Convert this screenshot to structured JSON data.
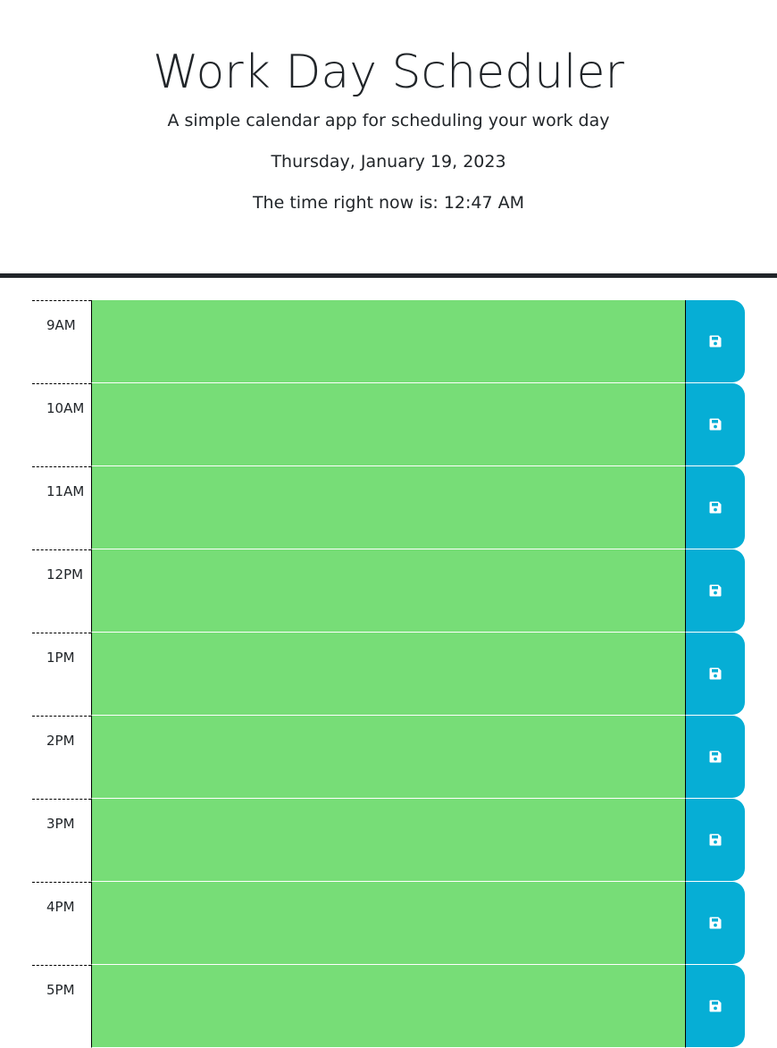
{
  "header": {
    "title": "Work Day Scheduler",
    "subtitle": "A simple calendar app for scheduling your work day",
    "date": "Thursday, January 19, 2023",
    "time_text": "The time right now is: 12:47 AM"
  },
  "colors": {
    "present": "#77dd77",
    "save_button": "#06aed5",
    "rule": "#212529"
  },
  "schedule": {
    "save_icon": "save-icon",
    "blocks": [
      {
        "hour": "9AM",
        "text": "",
        "state": "present"
      },
      {
        "hour": "10AM",
        "text": "",
        "state": "present"
      },
      {
        "hour": "11AM",
        "text": "",
        "state": "present"
      },
      {
        "hour": "12PM",
        "text": "",
        "state": "present"
      },
      {
        "hour": "1PM",
        "text": "",
        "state": "present"
      },
      {
        "hour": "2PM",
        "text": "",
        "state": "present"
      },
      {
        "hour": "3PM",
        "text": "",
        "state": "present"
      },
      {
        "hour": "4PM",
        "text": "",
        "state": "present"
      },
      {
        "hour": "5PM",
        "text": "",
        "state": "present"
      }
    ]
  }
}
